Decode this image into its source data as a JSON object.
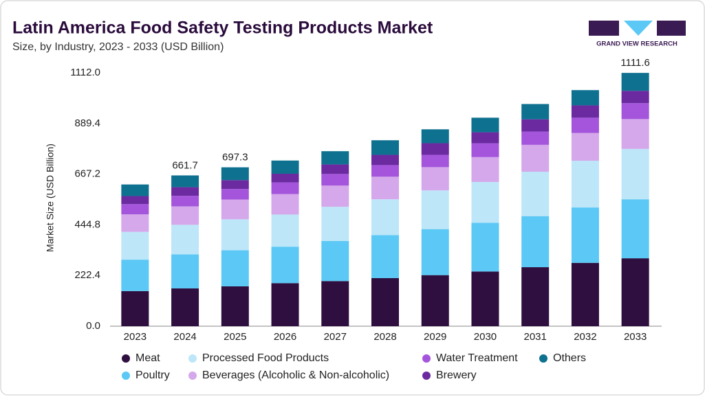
{
  "chart_data": {
    "type": "stacked_bar",
    "title": "Latin America Food Safety Testing Products Market",
    "subtitle": "Size, by Industry, 2023 - 2033 (USD Billion)",
    "y_label": "Market Size (USD Billion)",
    "logo_text": "GRAND VIEW RESEARCH",
    "categories": [
      "2023",
      "2024",
      "2025",
      "2026",
      "2027",
      "2028",
      "2029",
      "2030",
      "2031",
      "2032",
      "2033"
    ],
    "series": [
      {
        "name": "Meat",
        "color": "#2e0f3f",
        "values": [
          154,
          166,
          175,
          189,
          198,
          211,
          224,
          240,
          259,
          278,
          298
        ]
      },
      {
        "name": "Poultry",
        "color": "#5bc8f5",
        "values": [
          138,
          149,
          158,
          160,
          176,
          189,
          202,
          214,
          224,
          243,
          259
        ]
      },
      {
        "name": "Processed Food Products",
        "color": "#bde6f8",
        "values": [
          122,
          130,
          136,
          141,
          150,
          157,
          170,
          179,
          195,
          205,
          221
        ]
      },
      {
        "name": "Beverages (Alcoholic & Non-alcoholic)",
        "color": "#d4a8ea",
        "values": [
          77,
          81,
          87,
          90,
          93,
          99,
          102,
          109,
          118,
          122,
          131
        ]
      },
      {
        "name": "Water Treatment",
        "color": "#a455dc",
        "values": [
          45,
          46,
          46,
          51,
          51,
          51,
          54,
          61,
          58,
          67,
          70
        ]
      },
      {
        "name": "Brewery",
        "color": "#6b2aa0",
        "values": [
          35,
          38,
          39,
          38,
          42,
          45,
          51,
          48,
          54,
          54,
          54
        ]
      },
      {
        "name": "Others",
        "color": "#0f7190",
        "values": [
          51,
          51.7,
          56.3,
          58,
          58,
          64,
          61,
          64,
          67,
          67,
          78.6
        ]
      }
    ],
    "total_labels": [
      null,
      661.7,
      697.3,
      null,
      null,
      null,
      null,
      null,
      null,
      null,
      1111.6
    ],
    "ylim": [
      0,
      1112
    ],
    "yticks": [
      {
        "value": 0,
        "label": "0.0"
      },
      222.4,
      444.8,
      667.2,
      889.4,
      {
        "value": 1112,
        "label": "1112.0"
      }
    ],
    "grid": false
  }
}
